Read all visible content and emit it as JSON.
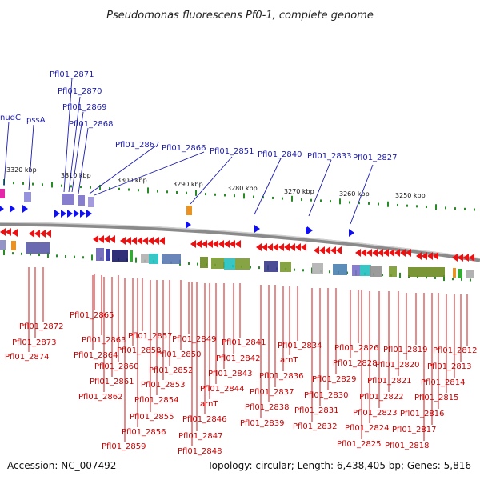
{
  "title": "Pseudomonas fluorescens Pf0-1, complete genome",
  "footer": {
    "accession": "Accession: NC_007492",
    "summary": "Topology: circular; Length: 6,438,405 bp; Genes: 5,816"
  },
  "colors": {
    "gene_label_top": "#1a1ab0",
    "gene_label_bottom": "#c80000",
    "forward_gene": "#1010ee",
    "reverse_gene": "#ee1010",
    "backbone": "#9a9a9a",
    "tick": "#2a8a2a"
  },
  "scale_labels": [
    "3320 kbp",
    "3310 kbp",
    "3300 kbp",
    "3290 kbp",
    "3280 kbp",
    "3270 kbp",
    "3260 kbp",
    "3250 kbp"
  ],
  "top_labels": [
    "nudC",
    "pssA",
    "Pfl01_2871",
    "Pfl01_2870",
    "Pfl01_2869",
    "Pfl01_2868",
    "Pfl01_2867",
    "Pfl01_2866",
    "Pfl01_2851",
    "Pfl01_2840",
    "Pfl01_2833",
    "Pfl01_2827"
  ],
  "bottom_labels": [
    "Pfl01_2865",
    "Pfl01_2872",
    "Pfl01_2873",
    "Pfl01_2874",
    "Pfl01_2863",
    "Pfl01_2864",
    "Pfl01_2857",
    "Pfl01_2858",
    "Pfl01_2860",
    "Pfl01_2861",
    "Pfl01_2862",
    "Pfl01_2849",
    "Pfl01_2850",
    "Pfl01_2852",
    "Pfl01_2853",
    "Pfl01_2854",
    "Pfl01_2855",
    "Pfl01_2856",
    "Pfl01_2859",
    "Pfl01_2841",
    "Pfl01_2842",
    "Pfl01_2843",
    "Pfl01_2844",
    "arnT",
    "Pfl01_2846",
    "Pfl01_2847",
    "Pfl01_2848",
    "Pfl01_2834",
    "arnT",
    "Pfl01_2836",
    "Pfl01_2837",
    "Pfl01_2838",
    "Pfl01_2839",
    "Pfl01_2826",
    "Pfl01_2828",
    "Pfl01_2829",
    "Pfl01_2830",
    "Pfl01_2831",
    "Pfl01_2832",
    "Pfl01_2819",
    "Pfl01_2820",
    "Pfl01_2821",
    "Pfl01_2822",
    "Pfl01_2823",
    "Pfl01_2824",
    "Pfl01_2825",
    "Pfl01_2812",
    "Pfl01_2813",
    "Pfl01_2814",
    "Pfl01_2815",
    "Pfl01_2816",
    "Pfl01_2817",
    "Pfl01_2818"
  ]
}
